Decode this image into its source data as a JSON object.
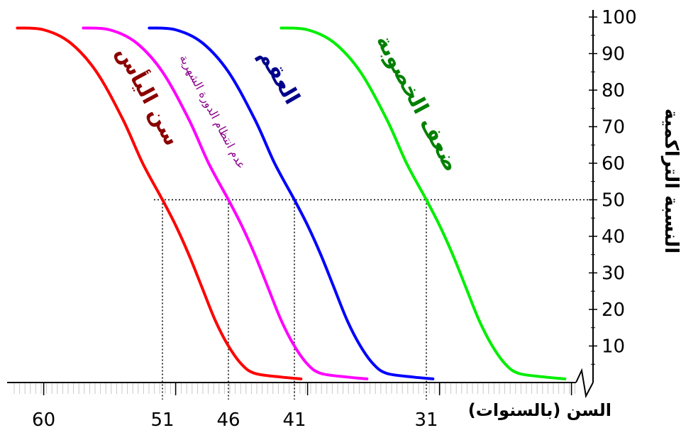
{
  "chart_data": {
    "type": "line",
    "xlabel": "السن (بالسنوات)",
    "ylabel": "النسبة التراكمية",
    "x_tick_labels": [
      {
        "x": 60,
        "label": "60"
      },
      {
        "x": 51,
        "label": "51"
      },
      {
        "x": 46,
        "label": "46"
      },
      {
        "x": 41,
        "label": "41"
      },
      {
        "x": 31,
        "label": "31"
      }
    ],
    "y_ticks": [
      10,
      20,
      30,
      40,
      50,
      60,
      70,
      80,
      90,
      100
    ],
    "ylim": [
      0,
      100
    ],
    "xlim": [
      20,
      61
    ],
    "x_reversed": true,
    "axis_break": true,
    "reference_line": {
      "y": 50,
      "x_values": [
        51,
        46,
        41,
        31
      ]
    },
    "series": [
      {
        "name": "سن اليأس",
        "color": "#ff0000",
        "label_color": "#8b0000",
        "points": [
          [
            62,
            97
          ],
          [
            60,
            96.5
          ],
          [
            58,
            93
          ],
          [
            56,
            85
          ],
          [
            54,
            72
          ],
          [
            52.5,
            60
          ],
          [
            51,
            50
          ],
          [
            50,
            43
          ],
          [
            49,
            35
          ],
          [
            48,
            26
          ],
          [
            47,
            17
          ],
          [
            46,
            10
          ],
          [
            45,
            5
          ],
          [
            44,
            2.5
          ],
          [
            42,
            1.5
          ],
          [
            40.5,
            1
          ]
        ]
      },
      {
        "name": "عدم انتظام الدورة الشهرية",
        "color": "#ff00ff",
        "label_color": "#8b008b",
        "points": [
          [
            57,
            97
          ],
          [
            55,
            96.5
          ],
          [
            53,
            93
          ],
          [
            51,
            85
          ],
          [
            49,
            72
          ],
          [
            47.5,
            60
          ],
          [
            46,
            50
          ],
          [
            45,
            43
          ],
          [
            44,
            35
          ],
          [
            43,
            26
          ],
          [
            42,
            17
          ],
          [
            41,
            10
          ],
          [
            40,
            5
          ],
          [
            39,
            2.5
          ],
          [
            37,
            1.5
          ],
          [
            35.5,
            1
          ]
        ]
      },
      {
        "name": "العقم",
        "color": "#0000ff",
        "label_color": "#00008b",
        "points": [
          [
            52,
            97
          ],
          [
            50,
            96.5
          ],
          [
            48,
            93
          ],
          [
            46,
            85
          ],
          [
            44,
            72
          ],
          [
            42.5,
            60
          ],
          [
            41,
            50
          ],
          [
            40,
            43
          ],
          [
            39,
            35
          ],
          [
            38,
            26
          ],
          [
            37,
            17
          ],
          [
            36,
            10
          ],
          [
            35,
            5
          ],
          [
            34,
            2.5
          ],
          [
            32,
            1.5
          ],
          [
            30.5,
            1
          ]
        ]
      },
      {
        "name": "ضعف الخصوبة",
        "color": "#00ee00",
        "label_color": "#008000",
        "points": [
          [
            42,
            97
          ],
          [
            40,
            96.5
          ],
          [
            38,
            93
          ],
          [
            36,
            85
          ],
          [
            34,
            72
          ],
          [
            32.5,
            60
          ],
          [
            31,
            50
          ],
          [
            30,
            43
          ],
          [
            29,
            35
          ],
          [
            28,
            26
          ],
          [
            27,
            17
          ],
          [
            26,
            10
          ],
          [
            25,
            5
          ],
          [
            24,
            2.5
          ],
          [
            22,
            1.5
          ],
          [
            20.5,
            1
          ]
        ]
      }
    ]
  }
}
